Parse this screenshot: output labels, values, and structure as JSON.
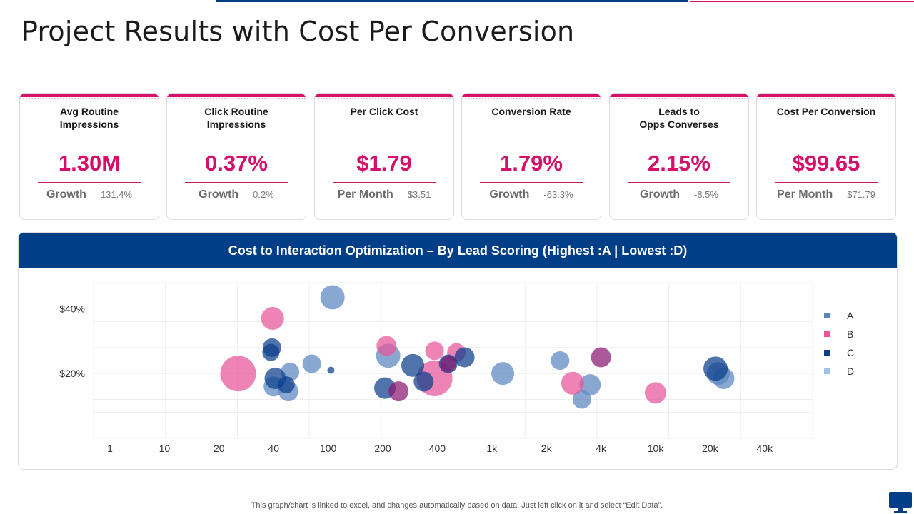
{
  "title": "Project Results with Cost Per Conversion",
  "kpis": [
    {
      "label": "Avg Routine\nImpressions",
      "value": "1.30M",
      "sub_label": "Growth",
      "sub_value": "131.4%"
    },
    {
      "label": "Click Routine\nImpressions",
      "value": "0.37%",
      "sub_label": "Growth",
      "sub_value": "0.2%"
    },
    {
      "label": "Per Click Cost",
      "value": "$1.79",
      "sub_label": "Per Month",
      "sub_value": "$3.51"
    },
    {
      "label": "Conversion Rate",
      "value": "1.79%",
      "sub_label": "Growth",
      "sub_value": "-63.3%"
    },
    {
      "label": "Leads to\nOpps Converses",
      "value": "2.15%",
      "sub_label": "Growth",
      "sub_value": "-8.5%"
    },
    {
      "label": "Cost Per Conversion",
      "value": "$99.65",
      "sub_label": "Per Month",
      "sub_value": "$71.79"
    }
  ],
  "chart_banner": "Cost to Interaction Optimization – By Lead Scoring (Highest :A | Lowest :D)",
  "footer_note": "This graph/chart is linked to excel, and changes automatically based on data. Just left click on it and select “Edit Data”.",
  "colors": {
    "brand_blue": "#003f88",
    "brand_pink": "#d6106a",
    "series_A": "#1f5da8",
    "series_B": "#e8559a",
    "series_C": "#0b3f8a",
    "series_D": "#9fc3e8",
    "series_purple": "#8a1870"
  },
  "chart_data": {
    "type": "scatter",
    "subtype": "bubble",
    "x_scale": "categorical-log",
    "x_ticks": [
      "1",
      "10",
      "20",
      "40",
      "100",
      "200",
      "400",
      "1k",
      "2k",
      "4k",
      "10k",
      "20k",
      "40k"
    ],
    "y_ticks": [
      "$20%",
      "$40%"
    ],
    "y_tick_values": [
      20,
      40
    ],
    "ylim": [
      0,
      48
    ],
    "legend_position": "right",
    "series": [
      {
        "name": "A",
        "color": "#5b86bf",
        "points": [
          {
            "x": 3.3,
            "y": 20.5,
            "r": 13
          },
          {
            "x": 3.7,
            "y": 23,
            "r": 13
          },
          {
            "x": 3.0,
            "y": 16,
            "r": 14
          },
          {
            "x": 3.27,
            "y": 14.5,
            "r": 14
          },
          {
            "x": 4.08,
            "y": 43.5,
            "r": 17
          },
          {
            "x": 5.1,
            "y": 25.5,
            "r": 17
          },
          {
            "x": 7.2,
            "y": 20,
            "r": 16
          },
          {
            "x": 8.25,
            "y": 24,
            "r": 13
          },
          {
            "x": 8.8,
            "y": 16.5,
            "r": 15
          },
          {
            "x": 8.65,
            "y": 12,
            "r": 13
          },
          {
            "x": 11.25,
            "y": 18.5,
            "r": 15
          },
          {
            "x": 11.15,
            "y": 20,
            "r": 16
          }
        ]
      },
      {
        "name": "B",
        "color": "#e8559a",
        "points": [
          {
            "x": 2.35,
            "y": 20,
            "r": 25
          },
          {
            "x": 2.98,
            "y": 37,
            "r": 16
          },
          {
            "x": 5.07,
            "y": 28.5,
            "r": 14
          },
          {
            "x": 5.95,
            "y": 27,
            "r": 13
          },
          {
            "x": 5.95,
            "y": 18.5,
            "r": 25
          },
          {
            "x": 6.35,
            "y": 26.5,
            "r": 13
          },
          {
            "x": 8.48,
            "y": 17,
            "r": 16
          },
          {
            "x": 10.0,
            "y": 14,
            "r": 15
          }
        ]
      },
      {
        "name": "C",
        "color": "#0b3f8a",
        "points": [
          {
            "x": 2.97,
            "y": 28,
            "r": 13
          },
          {
            "x": 2.95,
            "y": 26.5,
            "r": 12
          },
          {
            "x": 3.03,
            "y": 18.5,
            "r": 15
          },
          {
            "x": 3.23,
            "y": 16.5,
            "r": 12
          },
          {
            "x": 4.05,
            "y": 21,
            "r": 5
          },
          {
            "x": 5.04,
            "y": 15.5,
            "r": 15
          },
          {
            "x": 5.55,
            "y": 22.5,
            "r": 16
          },
          {
            "x": 5.75,
            "y": 17.5,
            "r": 14
          },
          {
            "x": 6.2,
            "y": 23,
            "r": 13
          },
          {
            "x": 6.5,
            "y": 25,
            "r": 14
          },
          {
            "x": 11.1,
            "y": 21.5,
            "r": 17
          }
        ]
      },
      {
        "name": "D",
        "color": "#9fc3e8",
        "points": []
      },
      {
        "name": "",
        "color": "#8a1870",
        "points": [
          {
            "x": 5.29,
            "y": 14.5,
            "r": 14
          },
          {
            "x": 6.2,
            "y": 23,
            "r": 11
          },
          {
            "x": 9.0,
            "y": 25,
            "r": 14
          }
        ]
      }
    ]
  }
}
